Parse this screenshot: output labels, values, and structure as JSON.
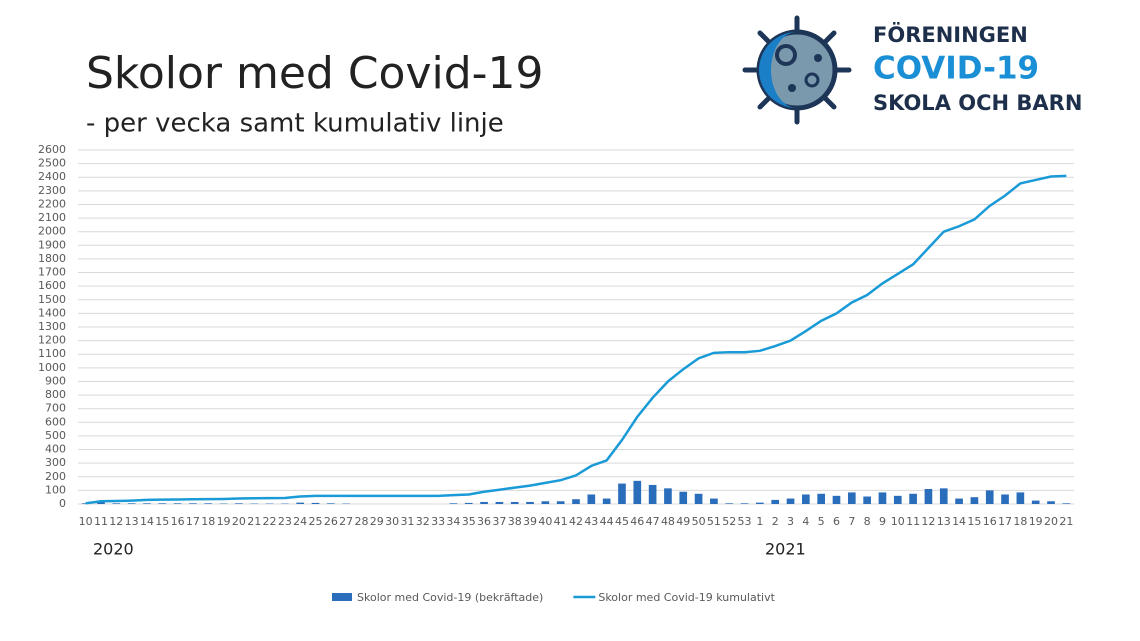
{
  "title": "Skolor med Covid-19",
  "subtitle": "- per vecka samt kumulativ linje",
  "logo": {
    "line1": "FÖRENINGEN",
    "line2": "COVID-19",
    "line3": "SKOLA OCH BARN"
  },
  "years": [
    "2020",
    "2021"
  ],
  "chart_data": {
    "type": "bar-line",
    "categories": [
      "10",
      "11",
      "12",
      "13",
      "14",
      "15",
      "16",
      "17",
      "18",
      "19",
      "20",
      "21",
      "22",
      "23",
      "24",
      "25",
      "26",
      "27",
      "28",
      "29",
      "30",
      "31",
      "32",
      "33",
      "34",
      "35",
      "36",
      "37",
      "38",
      "39",
      "40",
      "41",
      "42",
      "43",
      "44",
      "45",
      "46",
      "47",
      "48",
      "49",
      "50",
      "51",
      "52",
      "53",
      "1",
      "2",
      "3",
      "4",
      "5",
      "6",
      "7",
      "8",
      "9",
      "10",
      "11",
      "12",
      "13",
      "14",
      "15",
      "16",
      "17",
      "18",
      "19",
      "20",
      "21"
    ],
    "series": [
      {
        "name": "Skolor med Covid-19 (bekräftade)",
        "type": "bar",
        "color": "#2a6ebb",
        "values": [
          5,
          15,
          5,
          5,
          5,
          5,
          5,
          5,
          5,
          3,
          5,
          3,
          3,
          3,
          10,
          8,
          5,
          3,
          0,
          0,
          0,
          0,
          0,
          0,
          5,
          8,
          15,
          15,
          15,
          15,
          20,
          20,
          35,
          70,
          40,
          150,
          170,
          140,
          115,
          90,
          75,
          40,
          5,
          5,
          10,
          30,
          40,
          70,
          75,
          60,
          85,
          55,
          85,
          60,
          75,
          110,
          115,
          40,
          50,
          100,
          70,
          85,
          25,
          20,
          5
        ]
      },
      {
        "name": "Skolor med Covid-19 kumulativt",
        "type": "line",
        "color": "#1a9ad6",
        "values": [
          5,
          20,
          22,
          25,
          30,
          32,
          33,
          35,
          36,
          37,
          40,
          42,
          43,
          44,
          55,
          60,
          60,
          60,
          60,
          60,
          60,
          60,
          60,
          60,
          65,
          70,
          90,
          105,
          120,
          135,
          155,
          175,
          210,
          280,
          320,
          470,
          640,
          780,
          900,
          990,
          1070,
          1110,
          1115,
          1115,
          1125,
          1160,
          1200,
          1270,
          1345,
          1400,
          1480,
          1535,
          1620,
          1690,
          1760,
          1880,
          2000,
          2040,
          2090,
          2190,
          2265,
          2355,
          2380,
          2405,
          2410
        ]
      }
    ],
    "ylim": [
      0,
      2600
    ],
    "yticks": [
      0,
      100,
      200,
      300,
      400,
      500,
      600,
      700,
      800,
      900,
      1000,
      1100,
      1200,
      1300,
      1400,
      1500,
      1600,
      1700,
      1800,
      1900,
      2000,
      2100,
      2200,
      2300,
      2400,
      2500,
      2600
    ],
    "grid": true,
    "legend": "bottom"
  }
}
